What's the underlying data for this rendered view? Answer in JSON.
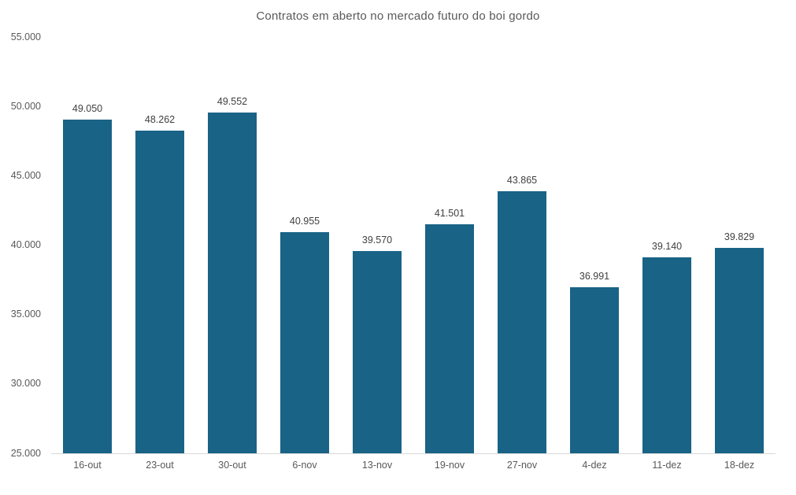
{
  "chart_data": {
    "type": "bar",
    "title": "Contratos em aberto no mercado futuro do boi gordo",
    "categories": [
      "16-out",
      "23-out",
      "30-out",
      "6-nov",
      "13-nov",
      "19-nov",
      "27-nov",
      "4-dez",
      "11-dez",
      "18-dez"
    ],
    "values": [
      49050,
      48262,
      49552,
      40955,
      39570,
      41501,
      43865,
      36991,
      39140,
      39829
    ],
    "value_labels": [
      "49.050",
      "48.262",
      "49.552",
      "40.955",
      "39.570",
      "41.501",
      "43.865",
      "36.991",
      "39.140",
      "39.829"
    ],
    "xlabel": "",
    "ylabel": "",
    "ylim": [
      25000,
      55000
    ],
    "y_ticks": [
      55000,
      50000,
      45000,
      40000,
      35000,
      30000,
      25000
    ],
    "y_tick_labels": [
      "55.000",
      "50.000",
      "45.000",
      "40.000",
      "35.000",
      "30.000",
      "25.000"
    ],
    "grid": false,
    "legend_position": "none",
    "colors": {
      "bar": "#196386",
      "title": "#595959",
      "axis_labels": "#595959",
      "data_labels": "#3f3f3f",
      "axis_line": "#d9d9d9",
      "background": "#ffffff"
    }
  }
}
